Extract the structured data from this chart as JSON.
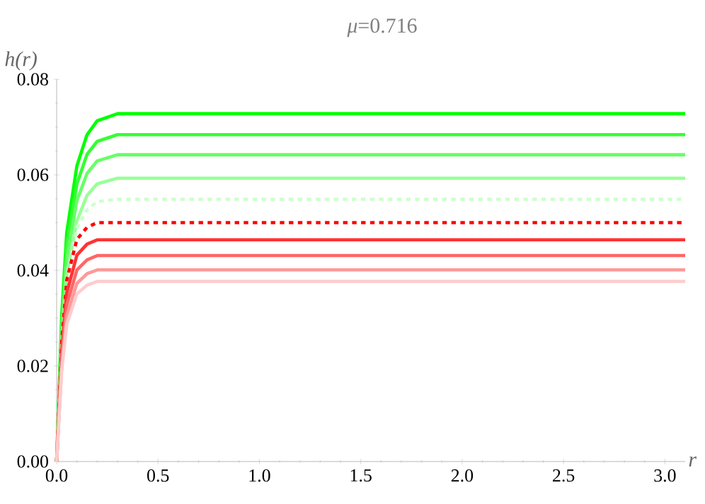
{
  "chart_data": {
    "type": "line",
    "title": "*μ*=0.716",
    "xlabel": "r",
    "ylabel": "h(r)",
    "x": [
      0,
      0.025,
      0.05,
      0.1,
      0.15,
      0.2,
      0.3,
      0.5,
      3.1
    ],
    "xlim": [
      0,
      3.1
    ],
    "ylim": [
      0,
      0.08
    ],
    "xticks": [
      {
        "value": 0,
        "label": "0.0"
      },
      0.5,
      {
        "value": 1,
        "label": "1.0"
      },
      1.5,
      {
        "value": 2,
        "label": "2.0"
      },
      2.5,
      {
        "value": 3,
        "label": "3.0"
      }
    ],
    "yticks": [
      {
        "value": 0,
        "label": "0.00"
      },
      0.02,
      0.04,
      0.06,
      {
        "value": 0.08,
        "label": "0.08"
      }
    ],
    "marker": "none",
    "series": [
      {
        "color": "#00ff00",
        "line_style": "solid",
        "values": [
          0,
          0.0306,
          0.048,
          0.0619,
          0.0684,
          0.0713,
          0.0728,
          0.0728,
          0.0728
        ]
      },
      {
        "color": "#33ff33",
        "line_style": "solid",
        "values": [
          0,
          0.0287,
          0.0451,
          0.0581,
          0.0643,
          0.067,
          0.0684,
          0.0684,
          0.0684
        ]
      },
      {
        "color": "#66ff66",
        "line_style": "solid",
        "values": [
          0,
          0.027,
          0.0424,
          0.0546,
          0.0603,
          0.0629,
          0.0642,
          0.0642,
          0.0642
        ]
      },
      {
        "color": "#99ff99",
        "line_style": "solid",
        "values": [
          0,
          0.0249,
          0.0391,
          0.0504,
          0.0557,
          0.0581,
          0.0593,
          0.0593,
          0.0593
        ]
      },
      {
        "color": "#ccffcc",
        "line_style": "dotted",
        "values": [
          0,
          0.0247,
          0.0384,
          0.0489,
          0.0527,
          0.0544,
          0.0549,
          0.0549,
          0.0549
        ]
      },
      {
        "color": "#ff0000",
        "line_style": "dotted",
        "values": [
          0,
          0.025,
          0.038,
          0.0465,
          0.049,
          0.05,
          0.05,
          0.05,
          0.05
        ]
      },
      {
        "color": "#ff3333",
        "line_style": "solid",
        "values": [
          0,
          0.0232,
          0.0353,
          0.0432,
          0.0455,
          0.0464,
          0.0464,
          0.0464,
          0.0464
        ]
      },
      {
        "color": "#ff6666",
        "line_style": "solid",
        "values": [
          0,
          0.0216,
          0.0328,
          0.0401,
          0.0422,
          0.0431,
          0.0431,
          0.0431,
          0.0431
        ]
      },
      {
        "color": "#ff9999",
        "line_style": "solid",
        "values": [
          0,
          0.0201,
          0.0305,
          0.0373,
          0.0393,
          0.0401,
          0.0401,
          0.0401,
          0.0401
        ]
      },
      {
        "color": "#ffcccc",
        "line_style": "solid",
        "values": [
          0,
          0.0189,
          0.0287,
          0.0351,
          0.0369,
          0.0377,
          0.0377,
          0.0377,
          0.0377
        ]
      }
    ]
  }
}
